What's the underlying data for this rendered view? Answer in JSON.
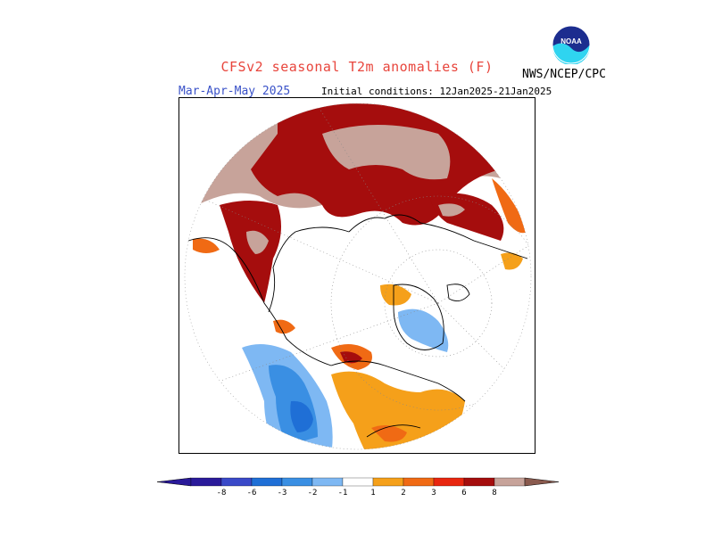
{
  "header": {
    "title": "CFSv2 seasonal T2m anomalies (F)",
    "season": "Mar-Apr-May 2025",
    "initial_conditions": "Initial conditions: 12Jan2025-21Jan2025",
    "agency": "NWS/NCEP/CPC",
    "logo_text": "NOAA"
  },
  "colors": {
    "neg8": "#2a1a9a",
    "neg6": "#3a49c8",
    "neg3": "#1f6fd6",
    "neg2": "#3a8fe3",
    "neg1": "#7eb8f3",
    "zero": "#ffffff",
    "pos1": "#f5a01a",
    "pos2": "#f06a14",
    "pos3": "#e8260f",
    "pos6": "#a50d0d",
    "pos8": "#c7a39a",
    "pos8plus": "#8a5a4e"
  },
  "legend": {
    "ticks": [
      "-8",
      "-6",
      "-3",
      "-2",
      "-1",
      "1",
      "2",
      "3",
      "6",
      "8"
    ],
    "bins": [
      "neg8",
      "neg6",
      "neg3",
      "neg2",
      "neg1",
      "zero",
      "pos1",
      "pos2",
      "pos3",
      "pos6",
      "pos8"
    ]
  }
}
